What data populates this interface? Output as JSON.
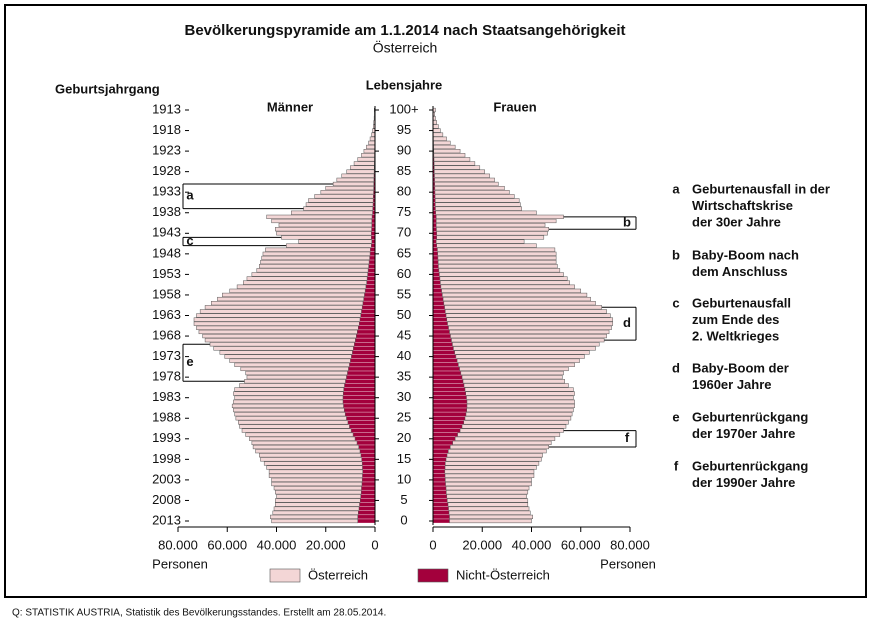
{
  "chart_data": {
    "type": "pyramid",
    "title": "Bevölkerungspyramide am 1.1.2014 nach Staatsangehörigkeit",
    "subtitle": "Österreich",
    "left_axis_label": "Geburtsjahrgang",
    "center_axis_label": "Lebensjahre",
    "x_axis_label": "Personen",
    "source": "Q: STATISTIK AUSTRIA, Statistik des Bevölkerungsstandes. Erstellt am 28.05.2014.",
    "x": [
      0,
      1,
      2,
      3,
      4,
      5,
      6,
      7,
      8,
      9,
      10,
      11,
      12,
      13,
      14,
      15,
      16,
      17,
      18,
      19,
      20,
      21,
      22,
      23,
      24,
      25,
      26,
      27,
      28,
      29,
      30,
      31,
      32,
      33,
      34,
      35,
      36,
      37,
      38,
      39,
      40,
      41,
      42,
      43,
      44,
      45,
      46,
      47,
      48,
      49,
      50,
      51,
      52,
      53,
      54,
      55,
      56,
      57,
      58,
      59,
      60,
      61,
      62,
      63,
      64,
      65,
      66,
      67,
      68,
      69,
      70,
      71,
      72,
      73,
      74,
      75,
      76,
      77,
      78,
      79,
      80,
      81,
      82,
      83,
      84,
      85,
      86,
      87,
      88,
      89,
      90,
      91,
      92,
      93,
      94,
      95,
      96,
      97,
      98,
      99,
      100
    ],
    "ylim": [
      0,
      100
    ],
    "yticks": [
      0,
      5,
      10,
      15,
      20,
      25,
      30,
      35,
      40,
      45,
      50,
      55,
      60,
      65,
      70,
      75,
      80,
      85,
      90,
      95,
      {
        "value": 100,
        "label": "100+"
      }
    ],
    "y2lim": [
      2013,
      1913
    ],
    "y2ticks": [
      2013,
      2008,
      2003,
      1998,
      1993,
      1988,
      1983,
      1978,
      1973,
      1968,
      1963,
      1958,
      1953,
      1948,
      1943,
      1938,
      1933,
      1928,
      1923,
      1918,
      1913
    ],
    "xlim": [
      0,
      80000
    ],
    "xticks": [
      0,
      {
        "value": 20000,
        "label": "20.000"
      },
      {
        "value": 40000,
        "label": "40.000"
      },
      {
        "value": 60000,
        "label": "60.000"
      },
      {
        "value": 80000,
        "label": "80.000"
      }
    ],
    "panels": [
      {
        "label": "Männer",
        "side": "left",
        "series": [
          {
            "name": "Österreich",
            "color": "#f3d6d6",
            "values": [
              35000,
              35500,
              34700,
              34500,
              34200,
              34500,
              34200,
              34900,
              35500,
              36700,
              36800,
              37900,
              38000,
              38900,
              39800,
              41100,
              41300,
              42400,
              42900,
              42700,
              42900,
              43600,
              44300,
              44600,
              44500,
              44900,
              44900,
              45000,
              45200,
              44500,
              44000,
              44600,
              44300,
              42600,
              41000,
              40400,
              41300,
              43700,
              46600,
              49000,
              51400,
              53800,
              56700,
              58600,
              61000,
              62400,
              64300,
              65700,
              67100,
              67400,
              66700,
              65500,
              63800,
              61600,
              59400,
              57700,
              55000,
              52300,
              50100,
              48800,
              47000,
              45200,
              44400,
              44100,
              43800,
              43500,
              42600,
              34500,
              29700,
              36500,
              38500,
              39100,
              37700,
              40700,
              42800,
              33000,
              28100,
              27200,
              26250,
              23800,
              21400,
              19450,
              16500,
              15050,
              13100,
              11150,
              9700,
              8250,
              6800,
              5320,
              4350,
              3380,
              2500,
              1920,
              1340,
              950,
              660,
              470,
              330,
              235,
              290
            ]
          },
          {
            "name": "Nicht-Österreich",
            "color": "#a3003c",
            "values": [
              7000,
              7000,
              6800,
              6500,
              6300,
              6000,
              5800,
              5600,
              5500,
              5300,
              5200,
              5100,
              5000,
              5100,
              5200,
              5400,
              5700,
              6100,
              6600,
              7300,
              8100,
              8900,
              9700,
              10400,
              11000,
              11600,
              12100,
              12500,
              12800,
              13000,
              13000,
              12900,
              12700,
              12400,
              12000,
              11600,
              11200,
              10800,
              10400,
              10000,
              9600,
              9200,
              8800,
              8400,
              8000,
              7600,
              7200,
              6800,
              6400,
              6100,
              5800,
              5500,
              5200,
              4900,
              4600,
              4300,
              4000,
              3700,
              3400,
              3200,
              3000,
              2800,
              2600,
              2400,
              2200,
              2000,
              1900,
              1500,
              1300,
              1500,
              1500,
              1400,
              1300,
              1300,
              1200,
              1000,
              900,
              800,
              750,
              700,
              600,
              550,
              500,
              450,
              400,
              350,
              300,
              250,
              200,
              180,
              150,
              120,
              100,
              80,
              60,
              50,
              40,
              30,
              20,
              15,
              10
            ]
          }
        ]
      },
      {
        "label": "Frauen",
        "side": "right",
        "series": [
          {
            "color": "#f3d6d6",
            "values": [
              33300,
              33800,
              33000,
              32700,
              32400,
              32700,
              32400,
              33100,
              33700,
              34900,
              35000,
              36100,
              36200,
              37100,
              38000,
              38700,
              38800,
              39800,
              40000,
              40000,
              40500,
              41500,
              42000,
              42200,
              42500,
              43000,
              43100,
              43300,
              43700,
              43700,
              43400,
              44200,
              44000,
              42400,
              41300,
              40700,
              41700,
              44200,
              47200,
              49700,
              52200,
              54700,
              57700,
              59600,
              62000,
              63400,
              64800,
              66200,
              67100,
              67400,
              66700,
              65500,
              63800,
              61600,
              59900,
              58700,
              56500,
              54300,
              52500,
              51700,
              50400,
              49100,
              48300,
              47900,
              48000,
              48100,
              47700,
              40500,
              35700,
              43500,
              45000,
              45600,
              44200,
              48700,
              51700,
              40900,
              35000,
              34550,
              34100,
              32150,
              30200,
              28250,
              25800,
              24350,
              22400,
              20450,
              18500,
              16550,
              14600,
              12650,
              10700,
              8750,
              6800,
              5350,
              3880,
              2900,
              2120,
              1440,
              960,
              670,
              970
            ]
          },
          {
            "color": "#a3003c",
            "values": [
              6700,
              6700,
              6500,
              6300,
              6100,
              5800,
              5600,
              5400,
              5300,
              5100,
              5000,
              4900,
              4800,
              4900,
              5000,
              5300,
              5700,
              6200,
              7000,
              8000,
              9000,
              10000,
              11000,
              11800,
              12500,
              13000,
              13400,
              13700,
              13800,
              13800,
              13600,
              13300,
              13000,
              12600,
              12200,
              11800,
              11300,
              10800,
              10300,
              9800,
              9300,
              8800,
              8300,
              7900,
              7500,
              7100,
              6700,
              6300,
              5900,
              5600,
              5300,
              5000,
              4700,
              4400,
              4100,
              3800,
              3500,
              3200,
              3000,
              2800,
              2600,
              2400,
              2200,
              2100,
              2000,
              1900,
              1800,
              1500,
              1300,
              1500,
              1500,
              1400,
              1300,
              1300,
              1300,
              1100,
              1000,
              950,
              900,
              850,
              800,
              750,
              700,
              650,
              600,
              550,
              500,
              450,
              400,
              350,
              300,
              250,
              200,
              150,
              120,
              100,
              80,
              60,
              40,
              30,
              30
            ]
          }
        ]
      }
    ],
    "annotations": [
      {
        "letter": "a",
        "side": "left",
        "range": [
          76,
          82
        ],
        "lines": [
          "Geburtenausfall in der",
          "Wirtschaftskrise",
          "der  30er Jahre"
        ]
      },
      {
        "letter": "b",
        "side": "right",
        "range": [
          71,
          74
        ],
        "lines": [
          "Baby-Boom nach",
          "dem Anschluss"
        ]
      },
      {
        "letter": "c",
        "side": "left",
        "range": [
          67,
          69
        ],
        "lines": [
          "Geburtenausfall",
          "zum Ende des",
          "2. Weltkrieges"
        ]
      },
      {
        "letter": "d",
        "side": "right",
        "range": [
          44,
          52
        ],
        "lines": [
          "Baby-Boom der",
          "1960er Jahre"
        ]
      },
      {
        "letter": "e",
        "side": "left",
        "range": [
          34,
          43
        ],
        "lines": [
          "Geburtenrückgang",
          "der 1970er Jahre"
        ]
      },
      {
        "letter": "f",
        "side": "right",
        "range": [
          18,
          22
        ],
        "lines": [
          "Geburtenrückgang",
          "der 1990er Jahre"
        ]
      }
    ]
  }
}
